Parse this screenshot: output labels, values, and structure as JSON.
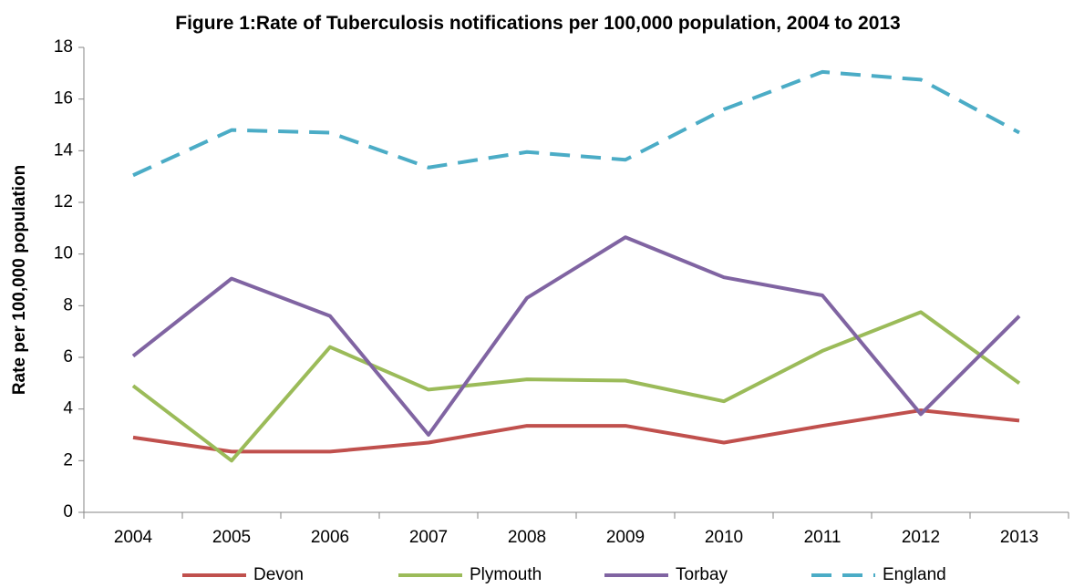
{
  "chart_data": {
    "type": "line",
    "title": "Figure 1:Rate of Tuberculosis notifications per 100,000 population, 2004 to 2013",
    "y_label": "Rate per 100,000 population",
    "categories": [
      "2004",
      "2005",
      "2006",
      "2007",
      "2008",
      "2009",
      "2010",
      "2011",
      "2012",
      "2013"
    ],
    "series": [
      {
        "name": "Devon",
        "color": "#c0504d",
        "values": [
          2.9,
          2.35,
          2.35,
          2.7,
          3.35,
          3.35,
          2.7,
          3.35,
          3.95,
          3.55
        ]
      },
      {
        "name": "Plymouth",
        "color": "#9bbb59",
        "values": [
          4.9,
          2.0,
          6.4,
          4.75,
          5.15,
          5.1,
          4.3,
          6.25,
          7.75,
          5.0
        ]
      },
      {
        "name": "Torbay",
        "color": "#8064a2",
        "values": [
          6.05,
          9.05,
          7.6,
          3.0,
          8.3,
          10.65,
          9.1,
          8.4,
          3.8,
          7.6
        ]
      },
      {
        "name": "England",
        "color": "#4bacc6",
        "dashed": true,
        "values": [
          13.05,
          14.8,
          14.7,
          13.35,
          13.95,
          13.65,
          15.6,
          17.05,
          16.75,
          14.7
        ]
      }
    ],
    "ylim": [
      0,
      18
    ],
    "yticks": [
      0,
      2,
      4,
      6,
      8,
      10,
      12,
      14,
      16,
      18
    ],
    "grid": false,
    "legend": "bottom"
  }
}
